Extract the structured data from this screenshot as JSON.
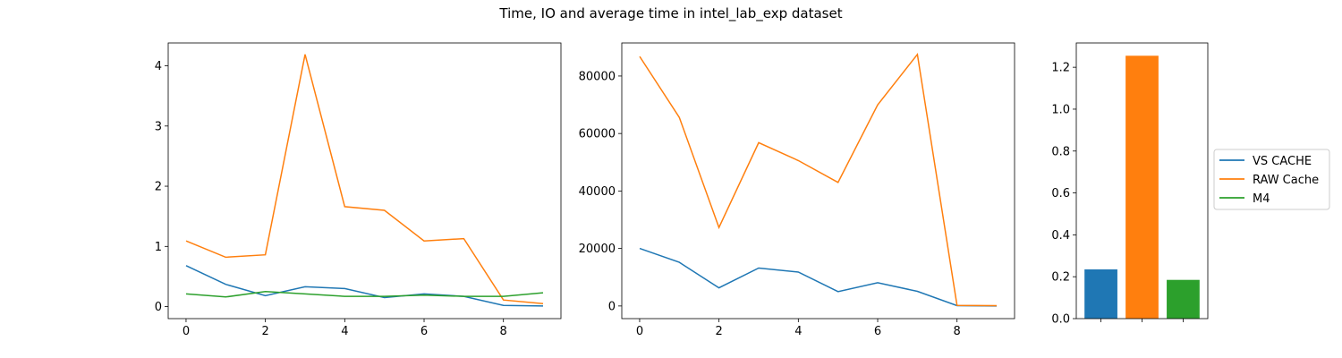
{
  "chart_data": {
    "title": "Time, IO and average time in intel_lab_exp dataset",
    "series_names": [
      "VS CACHE",
      "RAW Cache",
      "M4"
    ],
    "colors": [
      "#1f77b4",
      "#ff7f0e",
      "#2ca02c"
    ],
    "legend_placement": "right",
    "subplots": [
      {
        "type": "line",
        "x": [
          0,
          1,
          2,
          3,
          4,
          5,
          6,
          7,
          8,
          9
        ],
        "xlim": [
          -0.45,
          9.45
        ],
        "ylim": [
          -0.2,
          4.38
        ],
        "xticks": [
          0,
          2,
          4,
          6,
          8
        ],
        "yticks": [
          0,
          1,
          2,
          3,
          4
        ],
        "series": [
          {
            "name": "VS CACHE",
            "values": [
              0.68,
              0.37,
              0.18,
              0.33,
              0.3,
              0.15,
              0.21,
              0.17,
              0.02,
              0.01
            ]
          },
          {
            "name": "RAW Cache",
            "values": [
              1.09,
              0.82,
              0.86,
              4.19,
              1.66,
              1.6,
              1.09,
              1.13,
              0.11,
              0.05
            ]
          },
          {
            "name": "M4",
            "values": [
              0.21,
              0.16,
              0.25,
              0.21,
              0.17,
              0.17,
              0.19,
              0.17,
              0.17,
              0.23
            ]
          }
        ]
      },
      {
        "type": "line",
        "x": [
          0,
          1,
          2,
          3,
          4,
          5,
          6,
          7,
          8,
          9
        ],
        "xlim": [
          -0.45,
          9.45
        ],
        "ylim": [
          -4400,
          91500
        ],
        "xticks": [
          0,
          2,
          4,
          6,
          8
        ],
        "yticks": [
          0,
          20000,
          40000,
          60000,
          80000
        ],
        "series": [
          {
            "name": "VS CACHE",
            "values": [
              20000,
              15200,
              6300,
              13200,
              11800,
              5000,
              8100,
              5100,
              100,
              0
            ]
          },
          {
            "name": "RAW Cache",
            "values": [
              86800,
              65600,
              27300,
              56800,
              50600,
              43000,
              70000,
              87500,
              200,
              100
            ]
          }
        ]
      },
      {
        "type": "bar",
        "categories": [
          "VS CACHE",
          "RAW Cache",
          "M4"
        ],
        "values": [
          0.235,
          1.255,
          0.185
        ],
        "ylim": [
          0,
          1.316
        ],
        "yticks": [
          0.0,
          0.2,
          0.4,
          0.6,
          0.8,
          1.0,
          1.2
        ],
        "ytick_labels": [
          "0.0",
          "0.2",
          "0.4",
          "0.6",
          "0.8",
          "1.0",
          "1.2"
        ]
      }
    ]
  }
}
